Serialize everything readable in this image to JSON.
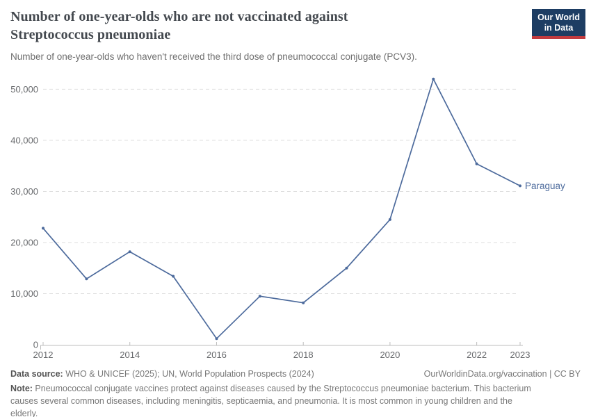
{
  "header": {
    "title": "Number of one-year-olds who are not vaccinated against Streptococcus pneumoniae",
    "subtitle": "Number of one-year-olds who haven't received the third dose of pneumococcal conjugate (PCV3).",
    "logo_line1": "Our World",
    "logo_line2": "in Data"
  },
  "chart_data": {
    "type": "line",
    "title": "Number of one-year-olds who are not vaccinated against Streptococcus pneumoniae",
    "x": [
      2012,
      2013,
      2014,
      2015,
      2016,
      2017,
      2018,
      2019,
      2020,
      2021,
      2022,
      2023
    ],
    "series": [
      {
        "name": "Paraguay",
        "color": "#4c6a9c",
        "values": [
          22800,
          12900,
          18200,
          13400,
          1200,
          9500,
          8200,
          15000,
          24500,
          52000,
          35400,
          31100
        ]
      }
    ],
    "xticks": [
      2012,
      2014,
      2016,
      2018,
      2020,
      2022,
      2023
    ],
    "yticks": [
      0,
      10000,
      20000,
      30000,
      40000,
      50000
    ],
    "xlim": [
      2012,
      2023
    ],
    "ylim": [
      0,
      52000
    ],
    "xlabel": "",
    "ylabel": "",
    "grid": "horizontal-dashed",
    "legend_position": "line-end-label"
  },
  "colors": {
    "line": "#4c6a9c",
    "grid": "#dedede",
    "axis": "#bdbdbd",
    "tick_text": "#67696c",
    "logo_bg": "#1d3d63",
    "logo_red": "#c23b3f"
  },
  "footer": {
    "data_source_label": "Data source:",
    "data_source_text": " WHO & UNICEF (2025); UN, World Population Prospects (2024)",
    "rights": "OurWorldinData.org/vaccination | CC BY",
    "note_label": "Note:",
    "note_text": " Pneumococcal conjugate vaccines protect against diseases caused by the Streptococcus pneumoniae bacterium. This bacterium causes several common diseases, including meningitis, septicaemia, and pneumonia. It is most common in young children and the elderly."
  }
}
